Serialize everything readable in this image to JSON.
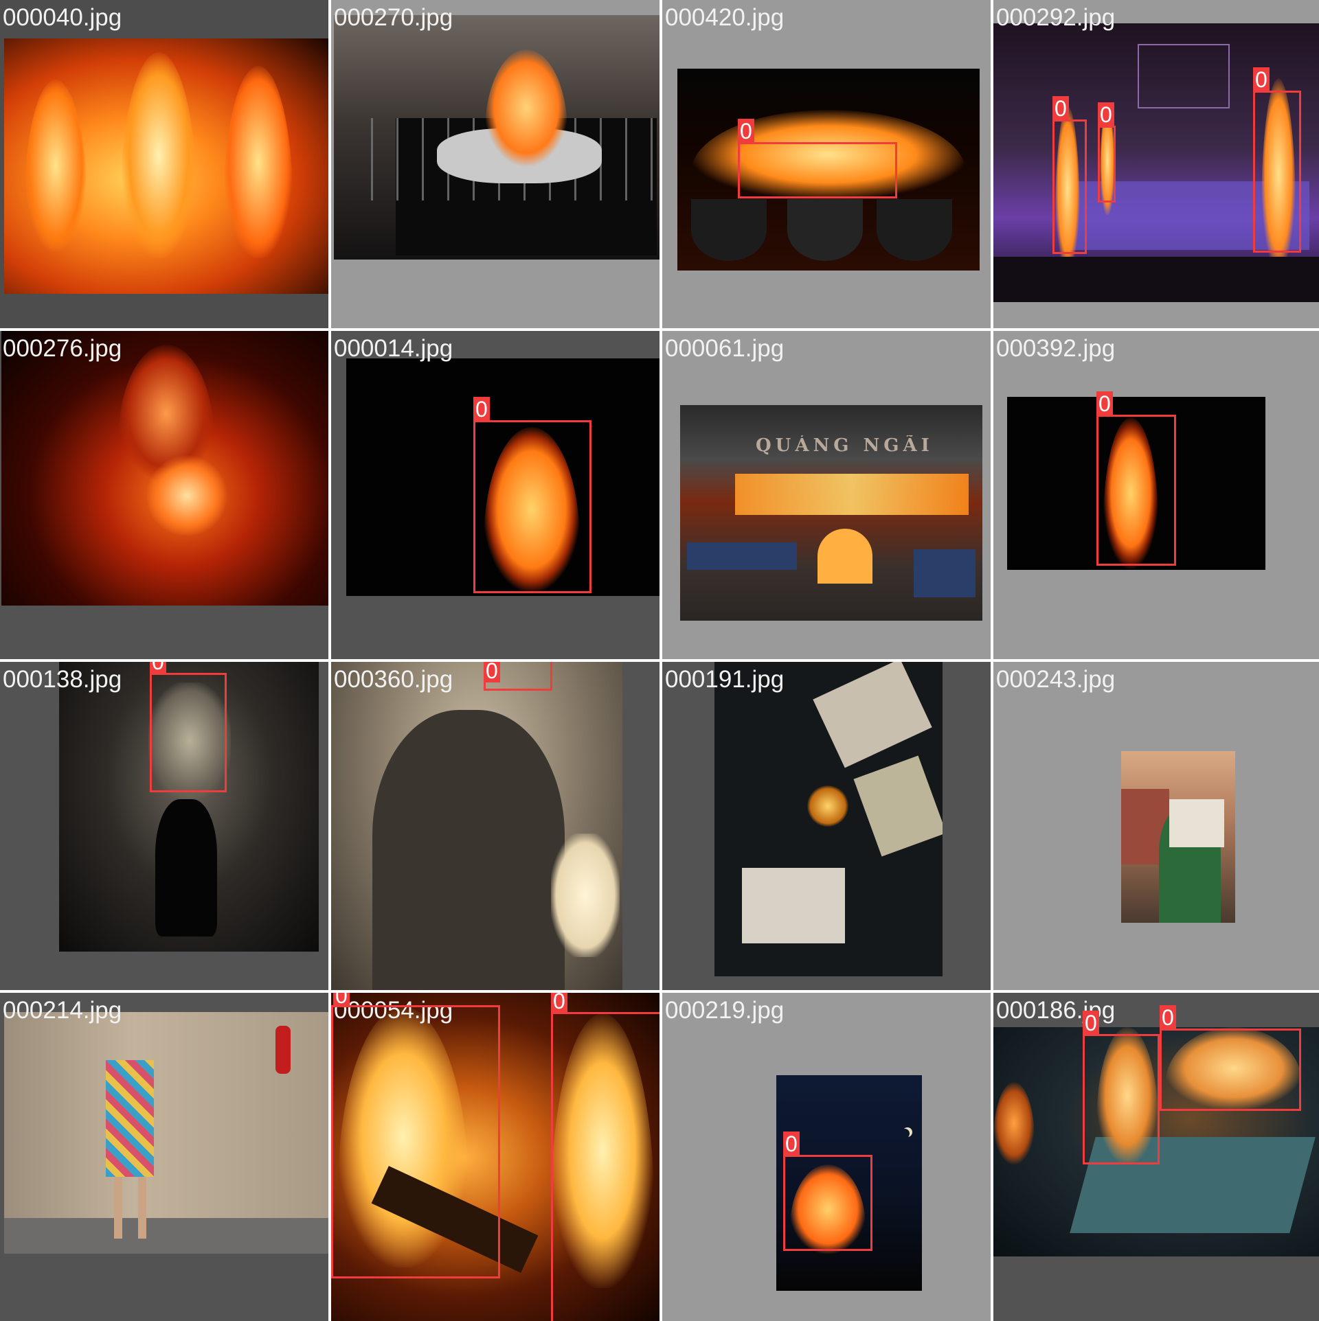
{
  "grid": {
    "tiles": [
      {
        "filename": "000040.jpg",
        "detections": []
      },
      {
        "filename": "000270.jpg",
        "detections": []
      },
      {
        "filename": "000420.jpg",
        "detections": [
          {
            "class_label": "0"
          }
        ]
      },
      {
        "filename": "000292.jpg",
        "detections": [
          {
            "class_label": "0"
          },
          {
            "class_label": "0"
          },
          {
            "class_label": "0"
          }
        ]
      },
      {
        "filename": "000276.jpg",
        "detections": []
      },
      {
        "filename": "000014.jpg",
        "detections": [
          {
            "class_label": "0"
          }
        ]
      },
      {
        "filename": "000061.jpg",
        "detections": [],
        "sign_text": "QUẢNG NGÃI"
      },
      {
        "filename": "000392.jpg",
        "detections": [
          {
            "class_label": "0"
          }
        ]
      },
      {
        "filename": "000138.jpg",
        "detections": [
          {
            "class_label": "0"
          }
        ]
      },
      {
        "filename": "000360.jpg",
        "detections": [
          {
            "class_label": "0"
          }
        ]
      },
      {
        "filename": "000191.jpg",
        "detections": []
      },
      {
        "filename": "000243.jpg",
        "detections": []
      },
      {
        "filename": "000214.jpg",
        "detections": []
      },
      {
        "filename": "000054.jpg",
        "detections": [
          {
            "class_label": "0"
          },
          {
            "class_label": "0"
          }
        ]
      },
      {
        "filename": "000219.jpg",
        "detections": [
          {
            "class_label": "0"
          }
        ]
      },
      {
        "filename": "000186.jpg",
        "detections": [
          {
            "class_label": "0"
          },
          {
            "class_label": "0"
          }
        ]
      }
    ]
  },
  "colors": {
    "box": "#f03c3c",
    "label_text": "#f2f2f2",
    "gray_dark": "#535353",
    "gray_light": "#9a9a9a"
  }
}
